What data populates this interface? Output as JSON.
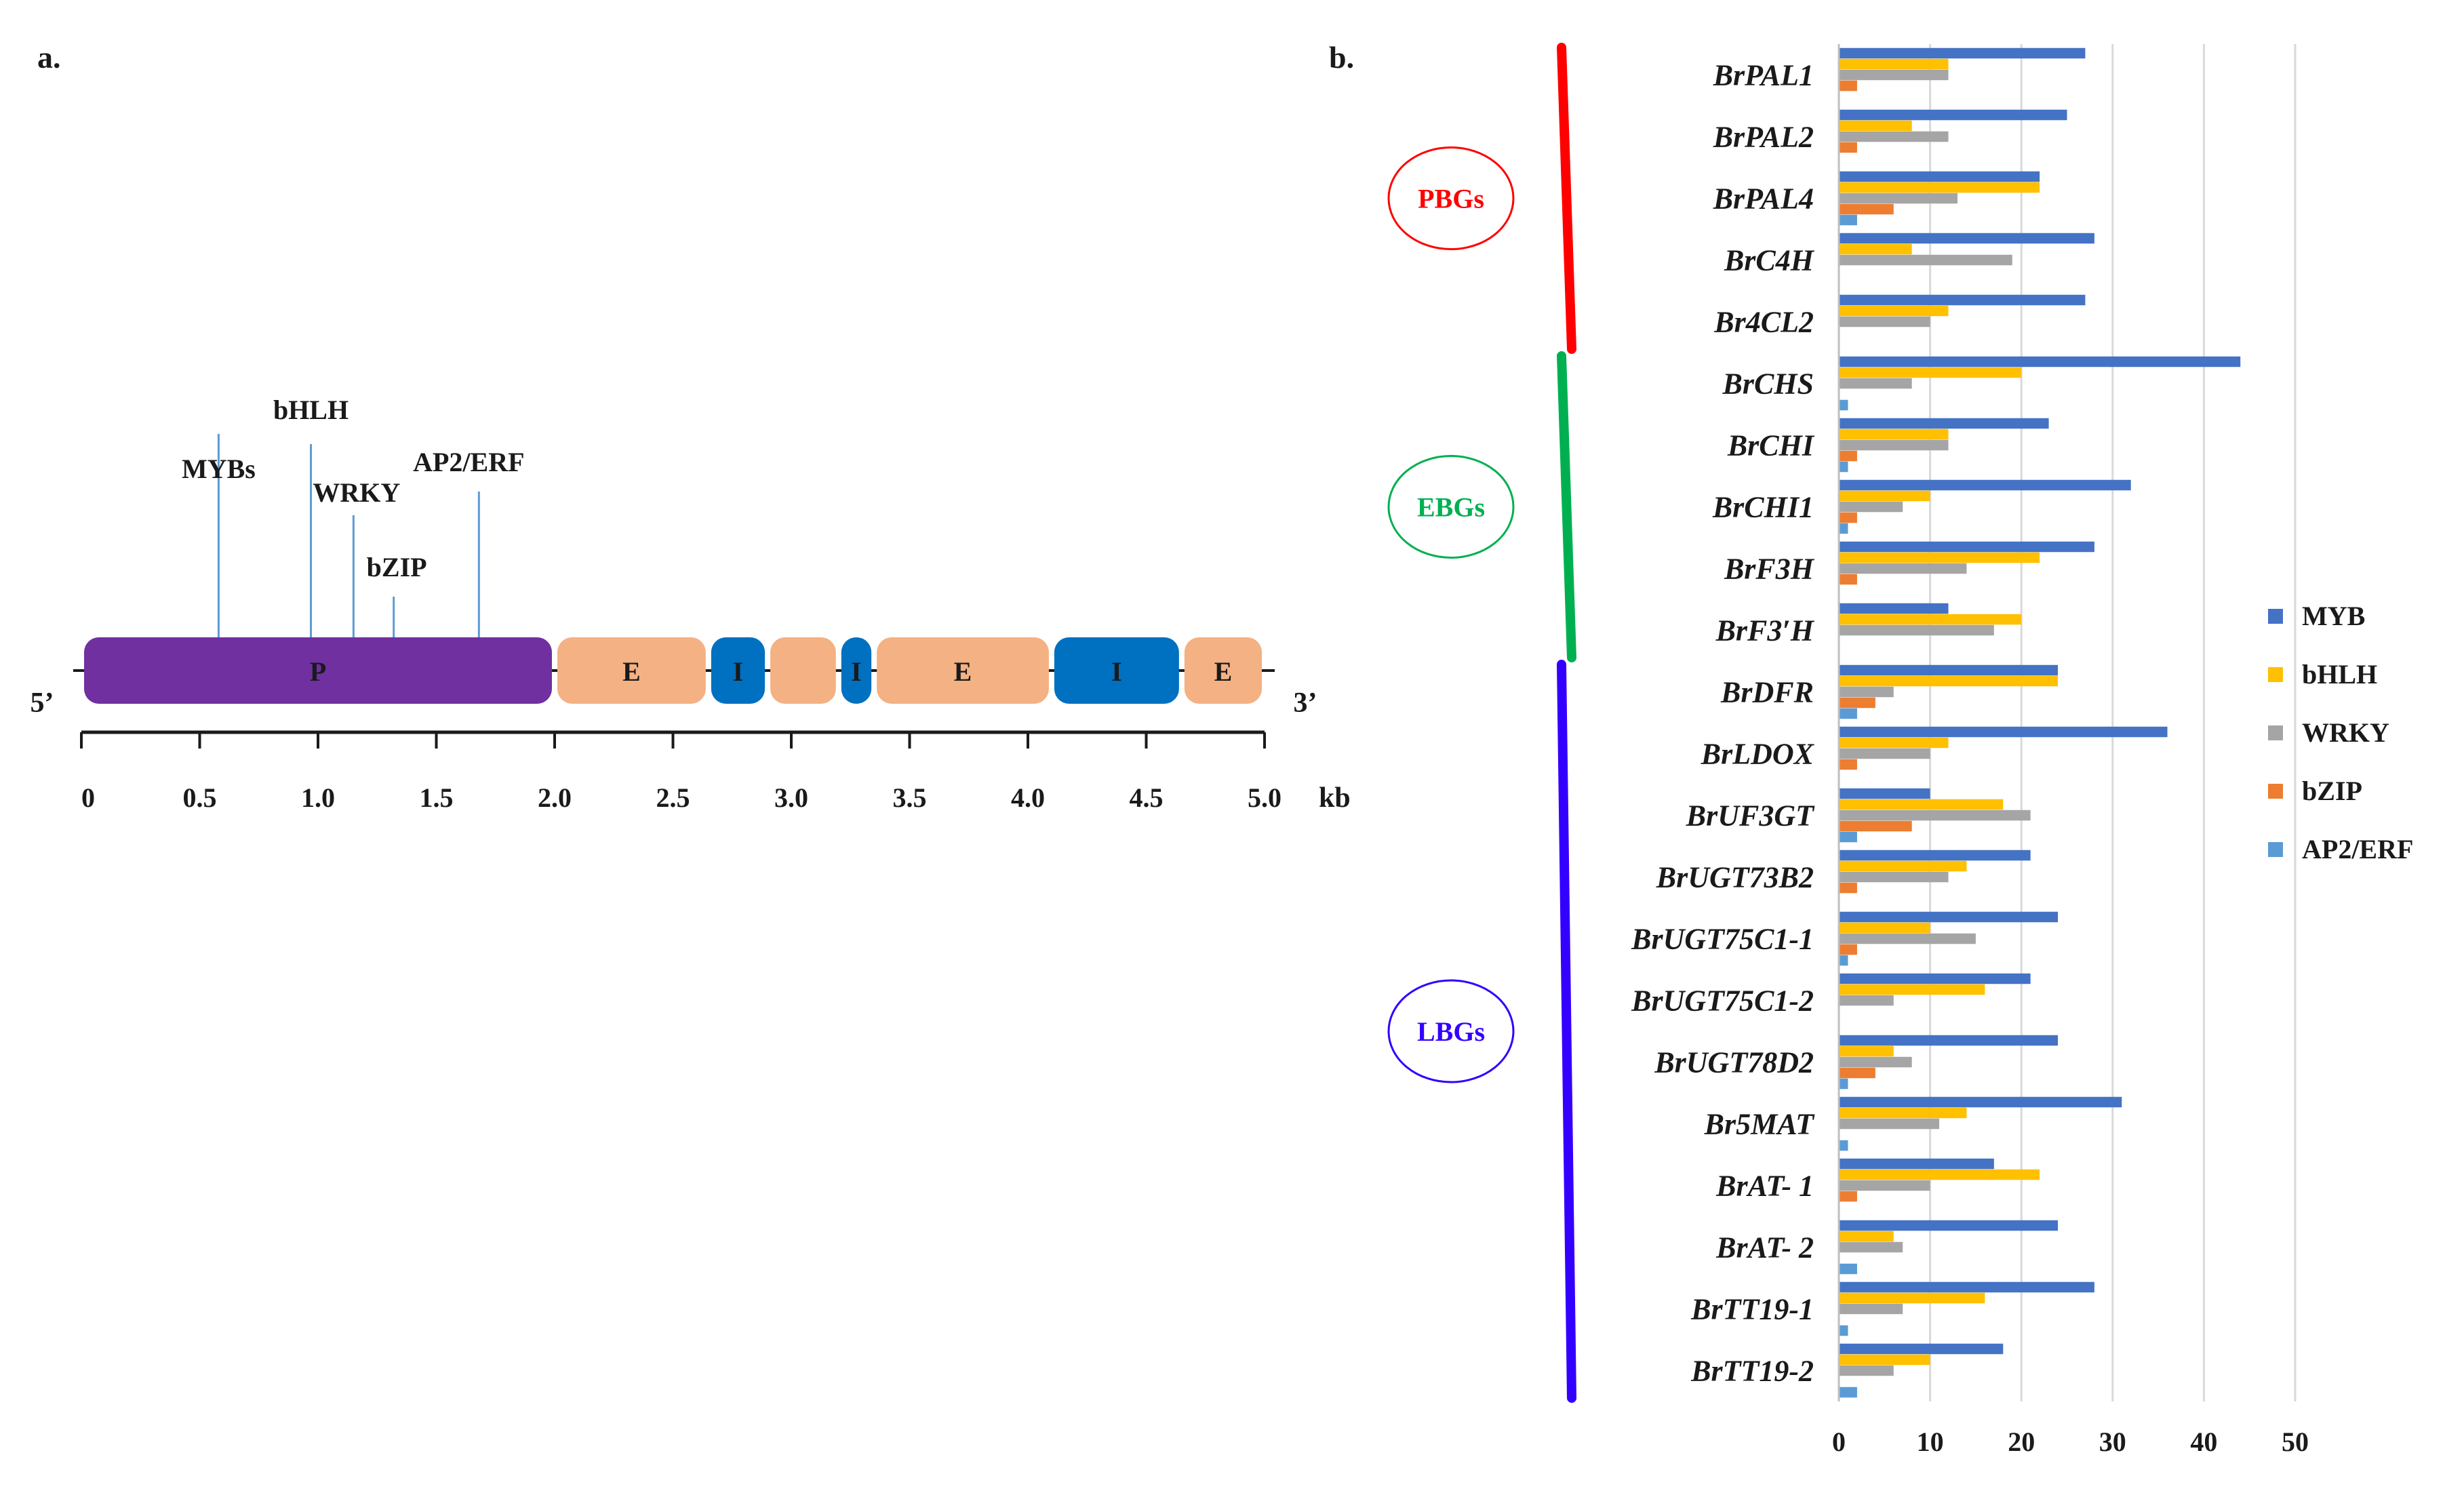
{
  "panel_a": {
    "label": "a.",
    "five_prime": "5’",
    "three_prime": "3’",
    "axis_unit": "kb",
    "axis_ticks": [
      "0",
      "0.5",
      "1.0",
      "1.5",
      "2.0",
      "2.5",
      "3.0",
      "3.5",
      "4.0",
      "4.5",
      "5.0"
    ],
    "segments": [
      {
        "label": "P",
        "start_kb": 0.0,
        "end_kb": 2.0,
        "color": "#7030a0"
      },
      {
        "label": "E",
        "start_kb": 2.0,
        "end_kb": 2.65,
        "color": "#f4b183"
      },
      {
        "label": "I",
        "start_kb": 2.65,
        "end_kb": 2.9,
        "color": "#0070c0"
      },
      {
        "label": "",
        "start_kb": 2.9,
        "end_kb": 3.2,
        "color": "#f4b183"
      },
      {
        "label": "I",
        "start_kb": 3.2,
        "end_kb": 3.35,
        "color": "#0070c0"
      },
      {
        "label": "E",
        "start_kb": 3.35,
        "end_kb": 4.1,
        "color": "#f4b183"
      },
      {
        "label": "I",
        "start_kb": 4.1,
        "end_kb": 4.65,
        "color": "#0070c0"
      },
      {
        "label": "E",
        "start_kb": 4.65,
        "end_kb": 5.0,
        "color": "#f4b183"
      }
    ],
    "binding_sites": [
      {
        "label": "MYBs",
        "kb": 0.58
      },
      {
        "label": "bHLH",
        "kb": 0.97
      },
      {
        "label": "WRKY",
        "kb": 1.15
      },
      {
        "label": "bZIP",
        "kb": 1.32
      },
      {
        "label": "AP2/ERF",
        "kb": 1.68
      }
    ]
  },
  "panel_b": {
    "label": "b.",
    "groups": [
      {
        "name": "PBGs",
        "color": "#ff0000",
        "first": 0,
        "last": 4
      },
      {
        "name": "EBGs",
        "color": "#00b050",
        "first": 5,
        "last": 9
      },
      {
        "name": "LBGs",
        "color": "#3300ff",
        "first": 10,
        "last": 21
      }
    ]
  },
  "chart_data": {
    "type": "bar",
    "orientation": "horizontal",
    "title": "",
    "xlabel": "",
    "ylabel": "",
    "xlim": [
      0,
      50
    ],
    "xticks": [
      0,
      10,
      20,
      30,
      40,
      50
    ],
    "grid": true,
    "legend_position": "right",
    "categories": [
      "BrPAL1",
      "BrPAL2",
      "BrPAL4",
      "BrC4H",
      "Br4CL2",
      "BrCHS",
      "BrCHI",
      "BrCHI1",
      "BrF3H",
      "BrF3′H",
      "BrDFR",
      "BrLDOX",
      "BrUF3GT",
      "BrUGT73B2",
      "BrUGT75C1-1",
      "BrUGT75C1-2",
      "BrUGT78D2",
      "Br5MAT",
      "BrAT- 1",
      "BrAT- 2",
      "BrTT19-1",
      "BrTT19-2"
    ],
    "series": [
      {
        "name": "MYB",
        "color": "#4472c4",
        "values": [
          27,
          25,
          22,
          28,
          27,
          44,
          23,
          32,
          28,
          12,
          24,
          36,
          10,
          21,
          24,
          21,
          24,
          31,
          17,
          24,
          28,
          18
        ]
      },
      {
        "name": "bHLH",
        "color": "#ffc000",
        "values": [
          12,
          8,
          22,
          8,
          12,
          20,
          12,
          10,
          22,
          20,
          24,
          12,
          18,
          14,
          10,
          16,
          6,
          14,
          22,
          6,
          16,
          10
        ]
      },
      {
        "name": "WRKY",
        "color": "#a5a5a5",
        "values": [
          12,
          12,
          13,
          19,
          10,
          8,
          12,
          7,
          14,
          17,
          6,
          10,
          21,
          12,
          15,
          6,
          8,
          11,
          10,
          7,
          7,
          6
        ]
      },
      {
        "name": "bZIP",
        "color": "#ed7d31",
        "values": [
          2,
          2,
          6,
          0,
          0,
          0,
          2,
          2,
          2,
          0,
          4,
          2,
          8,
          2,
          2,
          0,
          4,
          0,
          2,
          0,
          0,
          0
        ]
      },
      {
        "name": "AP2/ERF",
        "color": "#5b9bd5",
        "values": [
          0,
          0,
          2,
          0,
          0,
          1,
          1,
          1,
          0,
          0,
          2,
          0,
          2,
          0,
          1,
          0,
          1,
          1,
          0,
          2,
          1,
          2
        ]
      }
    ]
  }
}
